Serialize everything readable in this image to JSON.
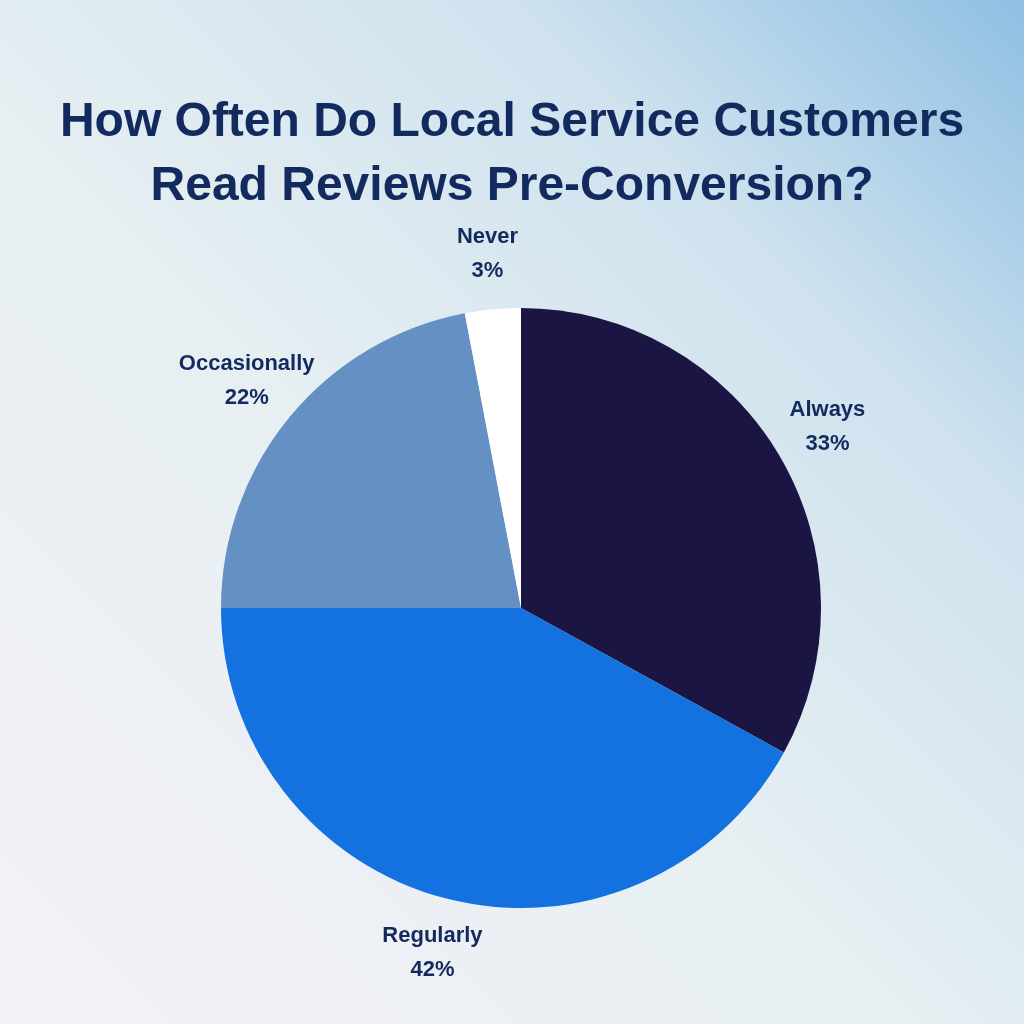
{
  "chart_data": {
    "type": "pie",
    "title": "How Often Do Local Service Customers Read Reviews Pre-Conversion?",
    "categories": [
      "Always",
      "Regularly",
      "Occasionally",
      "Never"
    ],
    "values": [
      33,
      42,
      22,
      3
    ],
    "colors": [
      "#1b1543",
      "#1472e0",
      "#6490c4",
      "#ffffff"
    ],
    "value_labels": [
      "33%",
      "42%",
      "22%",
      "3%"
    ]
  }
}
